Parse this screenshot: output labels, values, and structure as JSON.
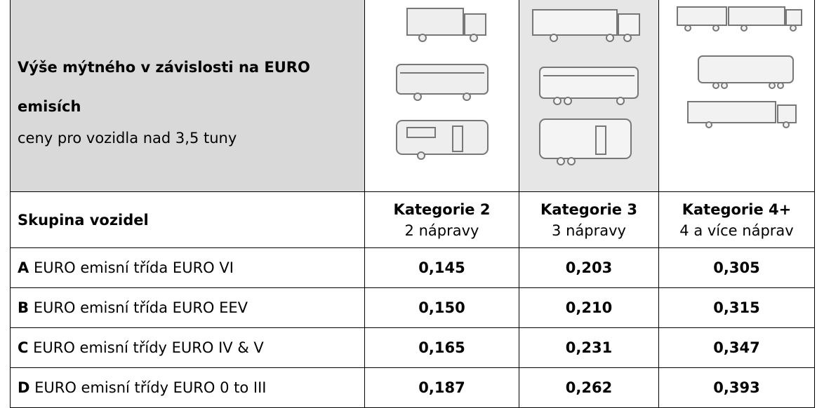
{
  "header": {
    "title": "Výše mýtného v závislosti na EURO emisích",
    "subtitle": "ceny pro vozidla nad 3,5 tuny"
  },
  "table": {
    "columns": [
      {
        "label": "Skupina vozidel"
      },
      {
        "label": "Kategorie 2",
        "sub": "2 nápravy"
      },
      {
        "label": "Kategorie 3",
        "sub": "3 nápravy"
      },
      {
        "label": "Kategorie 4+",
        "sub": "4 a více náprav"
      }
    ],
    "rows": [
      {
        "letter": "A",
        "label": "EURO emisní třída EURO VI",
        "values": [
          "0,145",
          "0,203",
          "0,305"
        ]
      },
      {
        "letter": "B",
        "label": "EURO emisní třída EURO EEV",
        "values": [
          "0,150",
          "0,210",
          "0,315"
        ]
      },
      {
        "letter": "C",
        "label": "EURO emisní třídy EURO IV & V",
        "values": [
          "0,165",
          "0,231",
          "0,347"
        ]
      },
      {
        "letter": "D",
        "label": "EURO emisní třídy EURO 0 to III",
        "values": [
          "0,187",
          "0,262",
          "0,393"
        ]
      }
    ]
  }
}
